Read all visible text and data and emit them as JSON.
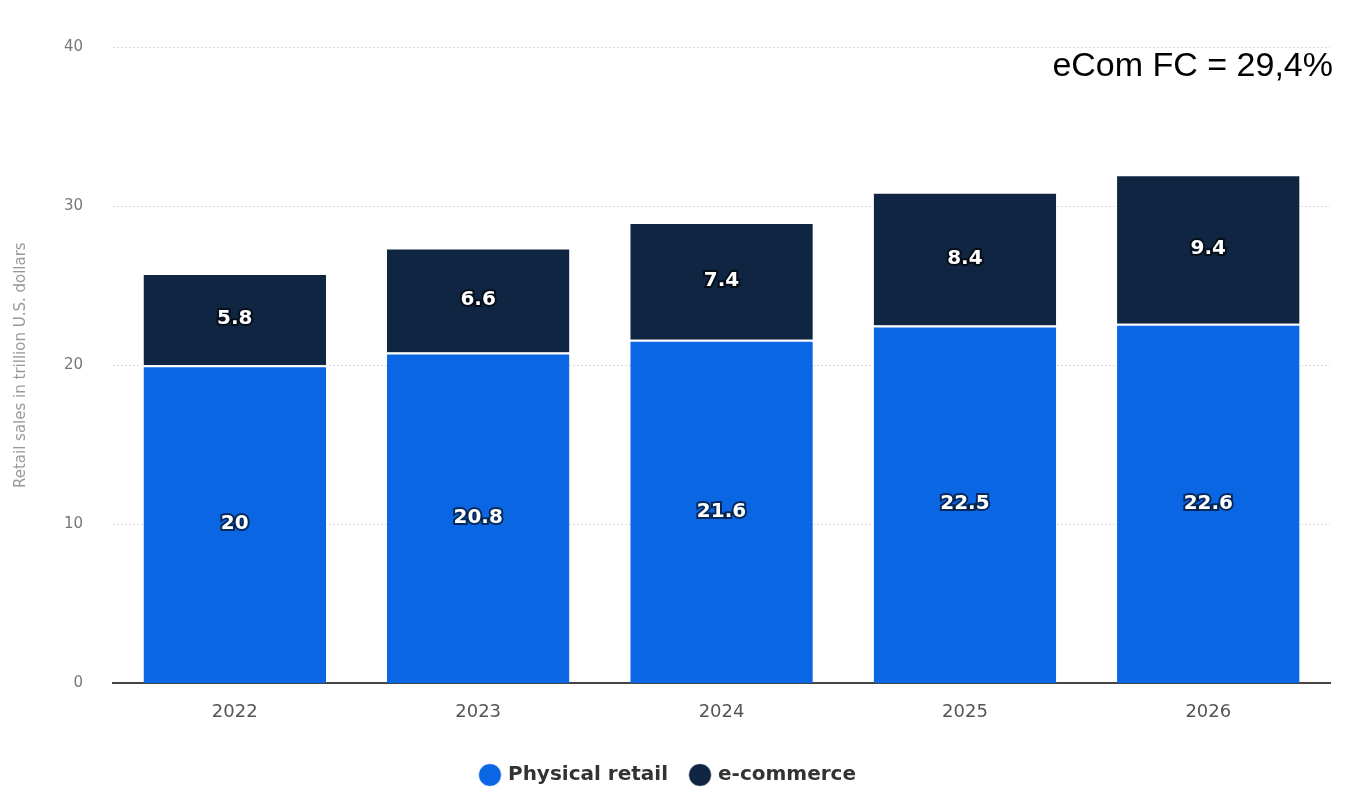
{
  "chart_data": {
    "type": "bar",
    "stacked": true,
    "ylabel": "Retail sales in trillion U.S. dollars",
    "categories": [
      "2022",
      "2023",
      "2024",
      "2025",
      "2026"
    ],
    "series": [
      {
        "name": "Physical retail",
        "color": "#0b66e4",
        "values": [
          20,
          20.8,
          21.6,
          22.5,
          22.6
        ]
      },
      {
        "name": "e-commerce",
        "color": "#0f2542",
        "values": [
          5.8,
          6.6,
          7.4,
          8.4,
          9.4
        ]
      }
    ],
    "ylim": [
      0,
      40
    ],
    "yticks": [
      0,
      10,
      20,
      30,
      40
    ],
    "grid": "y",
    "legend": "bottom",
    "data_labels": true,
    "annotations": [
      "eCom FC = 29,4%"
    ]
  }
}
